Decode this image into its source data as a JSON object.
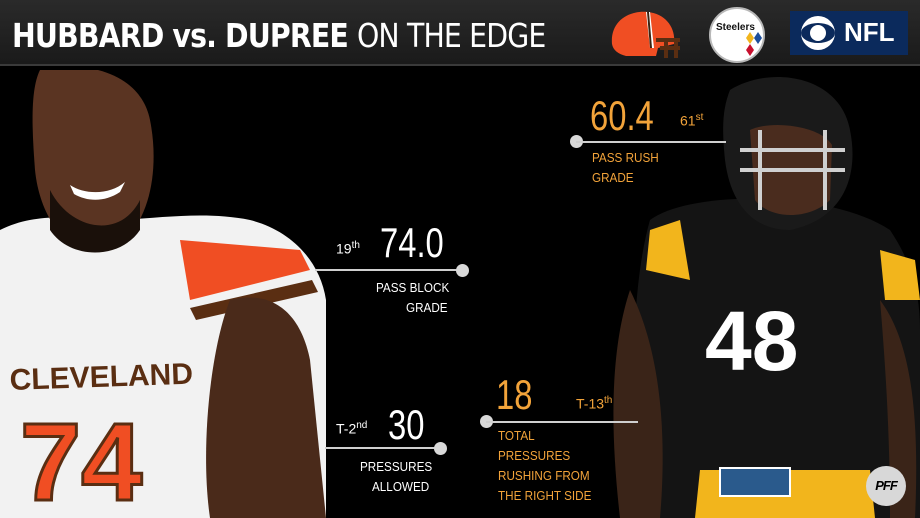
{
  "header": {
    "title_bold": "HUBBARD vs. DUPREE",
    "title_light": "ON THE EDGE",
    "logos": [
      "browns-helmet-icon",
      "steelers-logo-icon",
      "cbs-eye-icon"
    ],
    "network": "NFL"
  },
  "players": {
    "left": {
      "jersey_team": "CLEVELAND",
      "jersey_number": "74",
      "jersey_color": "#ffffff",
      "accent": "#f04e23"
    },
    "right": {
      "jersey_number": "48",
      "jersey_color": "#111111",
      "accent": "#f2b51c"
    }
  },
  "stats": {
    "pass_rush": {
      "value": "60.4",
      "rank": "61",
      "rank_suffix": "st",
      "label_1": "PASS RUSH",
      "label_2": "GRADE"
    },
    "pass_block": {
      "value": "74.0",
      "rank": "19",
      "rank_suffix": "th",
      "label_1": "PASS BLOCK",
      "label_2": "GRADE"
    },
    "pressures_allowed": {
      "value": "30",
      "rank": "T-2",
      "rank_suffix": "nd",
      "label_1": "PRESSURES",
      "label_2": "ALLOWED"
    },
    "total_pressures": {
      "value": "18",
      "rank": "T-13",
      "rank_suffix": "th",
      "label_1": "TOTAL",
      "label_2": "PRESSURES",
      "label_3": "RUSHING FROM",
      "label_4": "THE RIGHT SIDE"
    }
  },
  "colors": {
    "orange": "#f2a33a",
    "white": "#ffffff",
    "line": "#cfcfcf",
    "background": "#000000"
  },
  "watermark": "PFF"
}
